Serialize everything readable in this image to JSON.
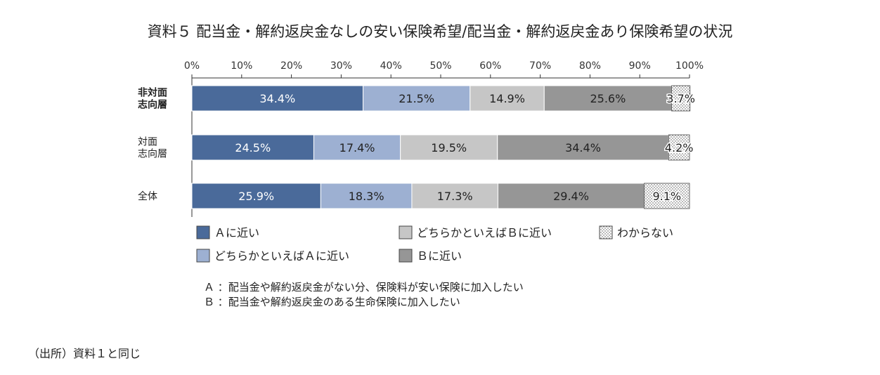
{
  "chart_data": {
    "type": "bar",
    "orientation": "horizontal",
    "stacked": true,
    "percent": true,
    "title": "資料５ 配当金・解約返戻金なしの安い保険希望/配当金・解約返戻金あり保険希望の状況",
    "categories": [
      "非対面\n志向層",
      "対面\n志向層",
      "全体"
    ],
    "xlim": [
      0,
      100
    ],
    "xticks": [
      "0%",
      "10%",
      "20%",
      "30%",
      "40%",
      "50%",
      "60%",
      "70%",
      "80%",
      "90%",
      "100%"
    ],
    "series": [
      {
        "name": "Ａに近い",
        "color": "#4a6a9a",
        "values": [
          34.4,
          24.5,
          25.9
        ],
        "labels": [
          "34.4%",
          "24.5%",
          "25.9%"
        ]
      },
      {
        "name": "どちらかといえばＡに近い",
        "color": "#9db0d2",
        "values": [
          21.5,
          17.4,
          18.3
        ],
        "labels": [
          "21.5%",
          "17.4%",
          "18.3%"
        ]
      },
      {
        "name": "どちらかといえばＢに近い",
        "color": "#c6c6c6",
        "values": [
          14.9,
          19.5,
          17.3
        ],
        "labels": [
          "14.9%",
          "19.5%",
          "17.3%"
        ]
      },
      {
        "name": "Ｂに近い",
        "color": "#969696",
        "values": [
          25.6,
          34.4,
          29.4
        ],
        "labels": [
          "25.6%",
          "34.4%",
          "29.4%"
        ]
      },
      {
        "name": "わからない",
        "color": "#ffffff",
        "pattern": "dots",
        "values": [
          3.7,
          4.2,
          9.1
        ],
        "labels": [
          "3.7%",
          "4.2%",
          "9.1%"
        ]
      }
    ],
    "legend_position": "bottom",
    "grid": false
  },
  "notes": [
    "Ａ ：配当金や解約返戻金がない分、保険料が安い保険に加入したい",
    "Ｂ ：配当金や解約返戻金のある生命保険に加入したい"
  ],
  "source": "（出所）資料１と同じ"
}
